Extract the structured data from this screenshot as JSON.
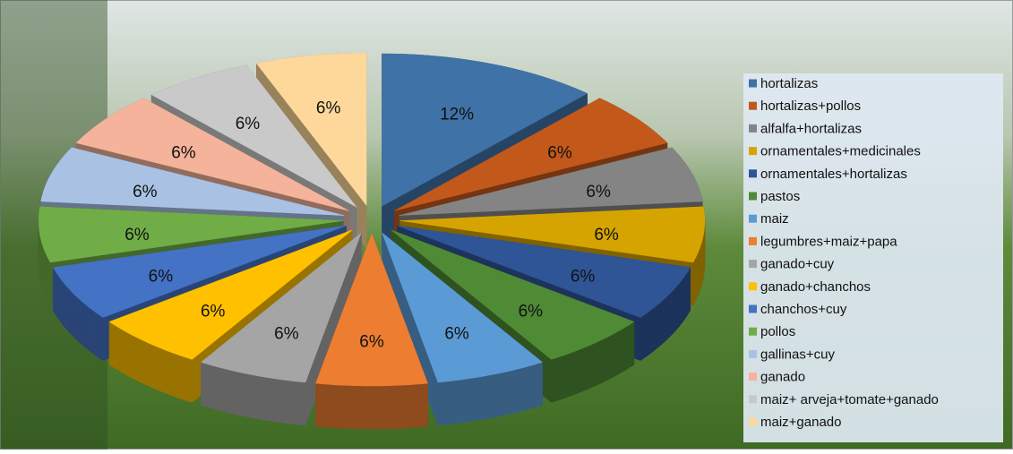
{
  "chart_data": {
    "type": "pie3d",
    "categories": [
      "hortalizas",
      "hortalizas+pollos",
      "alfalfa+hortalizas",
      "ornamentales+medicinales",
      "ornamentales+hortalizas",
      "pastos",
      "maiz",
      "legumbres+maiz+papa",
      "ganado+cuy",
      "ganado+chanchos",
      "chanchos+cuy",
      "pollos",
      "gallinas+cuy",
      "ganado",
      "maiz+ arveja+tomate+ganado",
      "maiz+ganado"
    ],
    "values": [
      12,
      6,
      6,
      6,
      6,
      6,
      6,
      6,
      6,
      6,
      6,
      6,
      6,
      6,
      6,
      6
    ],
    "value_labels": [
      "12%",
      "6%",
      "6%",
      "6%",
      "6%",
      "6%",
      "6%",
      "6%",
      "6%",
      "6%",
      "6%",
      "6%",
      "6%",
      "6%",
      "6%",
      "6%"
    ],
    "colors": [
      "#3f72a6",
      "#c3581b",
      "#848484",
      "#d6a400",
      "#2f5597",
      "#4f8a35",
      "#5b9bd5",
      "#ed7d31",
      "#a5a5a5",
      "#ffc000",
      "#4472c4",
      "#70ad47",
      "#a9c2e4",
      "#f4b39a",
      "#c9c9c9",
      "#fdd89a"
    ],
    "legend": "right"
  }
}
